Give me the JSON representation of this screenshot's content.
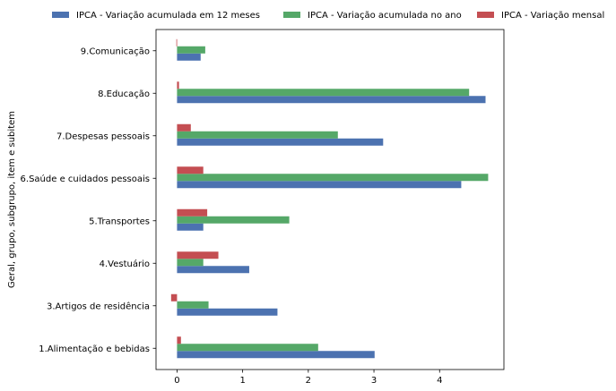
{
  "chart_data": {
    "type": "bar",
    "orientation": "horizontal",
    "title": "",
    "xlabel": "",
    "ylabel": "Geral, grupo, subgrupo, item e subitem",
    "categories": [
      "1.Alimentação e bebidas",
      "3.Artigos de residência",
      "4.Vestuário",
      "5.Transportes",
      "6.Saúde e cuidados pessoais",
      "7.Despesas pessoais",
      "8.Educação",
      "9.Comunicação"
    ],
    "series": [
      {
        "name": "IPCA - Variação acumulada em 12 meses",
        "color": "#4c72b0",
        "values": [
          3.01,
          1.53,
          1.1,
          0.4,
          4.33,
          3.14,
          4.7,
          0.36
        ]
      },
      {
        "name": "IPCA - Variação acumulada no ano",
        "color": "#55a868",
        "values": [
          2.15,
          0.48,
          0.4,
          1.71,
          4.74,
          2.45,
          4.45,
          0.43
        ]
      },
      {
        "name": "IPCA - Variação mensal",
        "color": "#c44e52",
        "values": [
          0.06,
          -0.09,
          0.63,
          0.46,
          0.4,
          0.21,
          0.03,
          -0.01
        ]
      }
    ],
    "xlim": [
      -0.32,
      4.98
    ],
    "xticks": [
      0,
      1,
      2,
      3,
      4
    ],
    "grid": false,
    "legend_position": "top"
  }
}
